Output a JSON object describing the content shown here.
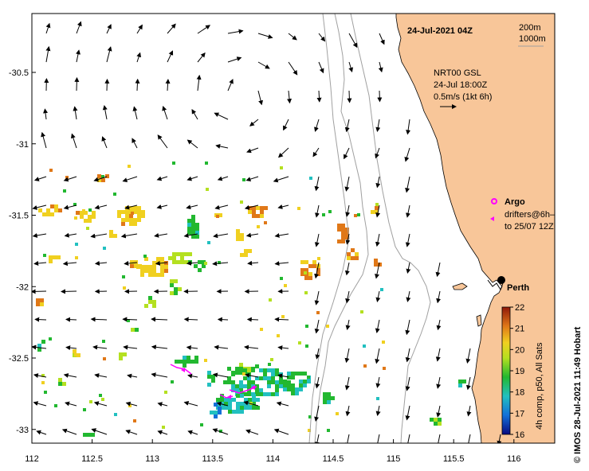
{
  "map": {
    "title": "24-Jul-2021 04Z",
    "bathymetry_contours": [
      "200m",
      "1000m"
    ],
    "current_source": "NRT00 GSL",
    "current_time": "24-Jul 18:00Z",
    "vector_scale": "0.5m/s (1kt 6h)",
    "argo_label": "Argo",
    "drifters_label_1": "drifters@6h–",
    "drifters_label_2": "to 25/07 12Z",
    "city_label": "Perth",
    "credit": "© IMOS 28-Jul-2021 11:49 Hobart",
    "colorbar": {
      "label": "4h comp, p50, All Sats",
      "ticks": [
        "22",
        "21",
        "20",
        "19",
        "18",
        "17",
        "16"
      ],
      "min": 16,
      "max": 22
    },
    "x_ticks": [
      "112",
      "112.5",
      "113",
      "113.5",
      "114",
      "114.5",
      "115",
      "115.5",
      "116"
    ],
    "y_ticks": [
      "-30.5",
      "-31",
      "-31.5",
      "-32",
      "-32.5",
      "-33"
    ],
    "colors": {
      "land": "#f8c699",
      "contour": "#a0a0a0",
      "argo": "#ff00ff",
      "drifter": "#ff00ff"
    }
  }
}
